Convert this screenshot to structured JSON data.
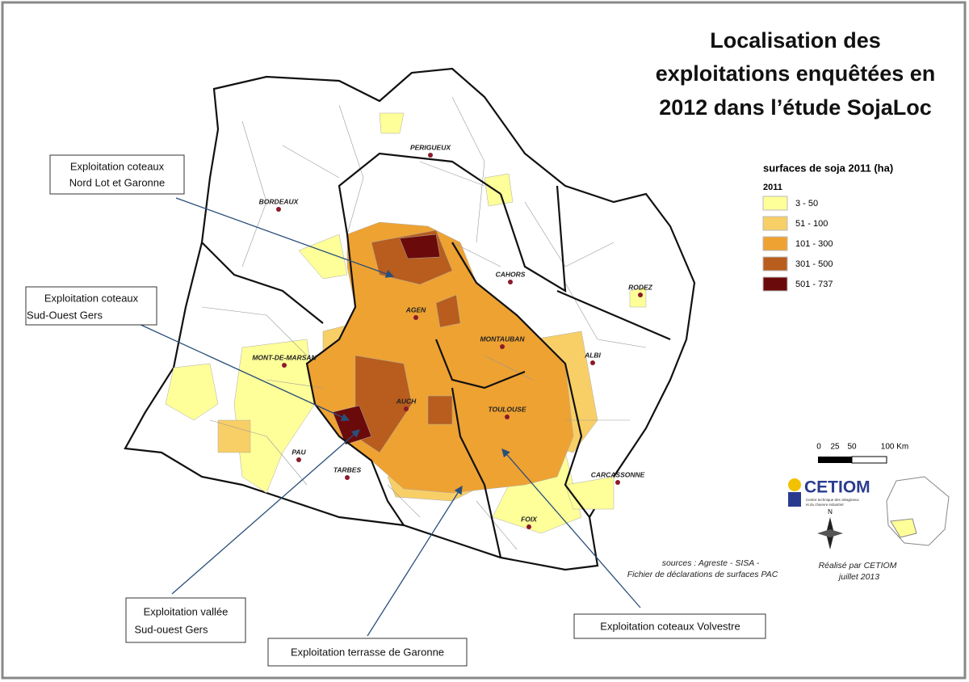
{
  "title_lines": [
    "Localisation des",
    "exploitations enquêtées en",
    "2012 dans l’étude SojaLoc"
  ],
  "legend": {
    "title": "surfaces de soja 2011 (ha)",
    "subtitle": "2011",
    "classes": [
      {
        "label": "3 - 50",
        "color": "#ffff99"
      },
      {
        "label": "51 - 100",
        "color": "#f8cf66"
      },
      {
        "label": "101 - 300",
        "color": "#eea232"
      },
      {
        "label": "301 - 500",
        "color": "#b85d1d"
      },
      {
        "label": "501 - 737",
        "color": "#6b0a0a"
      }
    ]
  },
  "cities": [
    "PERIGUEUX",
    "BORDEAUX",
    "CAHORS",
    "RODEZ",
    "AGEN",
    "MONTAUBAN",
    "ALBI",
    "MONT-DE-MARSAN",
    "AUCH",
    "TOULOUSE",
    "PAU",
    "TARBES",
    "CARCASSONNE",
    "FOIX"
  ],
  "callouts": [
    [
      "Exploitation coteaux",
      "Nord Lot et Garonne"
    ],
    [
      "Exploitation coteaux",
      "Sud-Ouest Gers"
    ],
    [
      "Exploitation vallée",
      "Sud-ouest Gers"
    ],
    [
      "Exploitation terrasse de Garonne"
    ],
    [
      "Exploitation coteaux Volvestre"
    ]
  ],
  "scale": [
    "0",
    "25",
    "50",
    "100 Km"
  ],
  "logo": {
    "name": "CETIOM",
    "tagline": [
      "Centre technique des oléagineux",
      "et du chanvre industriel"
    ]
  },
  "compass": "N",
  "sources": [
    "sources  : Agreste - SISA -",
    "Fichier de déclarations de surfaces PAC"
  ],
  "credit": [
    "Réalisé par CETIOM",
    "juillet 2013"
  ]
}
